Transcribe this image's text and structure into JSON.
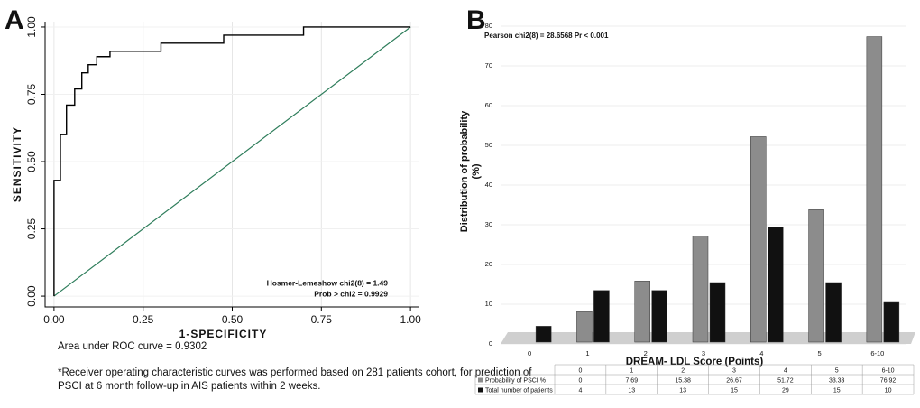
{
  "chart_data": [
    {
      "type": "line",
      "panel_label": "A",
      "xlabel": "1-SPECIFICITY",
      "ylabel": "SENSITIVITY",
      "x": [
        0,
        0,
        0.018,
        0.018,
        0.035,
        0.035,
        0.058,
        0.058,
        0.078,
        0.078,
        0.096,
        0.096,
        0.12,
        0.12,
        0.157,
        0.157,
        0.3,
        0.3,
        0.476,
        0.476,
        0.7,
        0.7,
        1
      ],
      "y": [
        0,
        0.43,
        0.43,
        0.6,
        0.6,
        0.71,
        0.71,
        0.77,
        0.77,
        0.83,
        0.83,
        0.86,
        0.86,
        0.89,
        0.89,
        0.91,
        0.91,
        0.94,
        0.94,
        0.97,
        0.97,
        1,
        1
      ],
      "color": "#000000",
      "reference_color": "#2e7d5b",
      "xlim": [
        -0.025,
        1.025
      ],
      "ylim": [
        -0.04,
        1.02
      ],
      "xticks": [
        {
          "value": 0,
          "label": "0.00"
        },
        {
          "value": 0.25,
          "label": "0.25"
        },
        {
          "value": 0.5,
          "label": "0.50"
        },
        {
          "value": 0.75,
          "label": "0.75"
        },
        {
          "value": 1,
          "label": "1.00"
        }
      ],
      "yticks": [
        {
          "value": 0,
          "label": "0.00"
        },
        {
          "value": 0.25,
          "label": "0.25"
        },
        {
          "value": 0.5,
          "label": "0.50"
        },
        {
          "value": 0.75,
          "label": "0.75"
        },
        {
          "value": 1,
          "label": "1.00"
        }
      ],
      "grid": true,
      "annotations": [
        "Hosmer-Lemeshow chi2(8) = 1.49",
        "Prob > chi2 = 0.9929"
      ],
      "note": "Area under ROC curve = 0.9302",
      "footnote": [
        "*Receiver operating characteristic curves was performed based on 281 patients cohort, for prediction of",
        "PSCI at 6 month follow-up in AIS patients within 2 weeks."
      ]
    },
    {
      "type": "bar",
      "panel_label": "B",
      "title": "Pearson chi2(8) = 28.6568   Pr < 0.001",
      "xlabel": "DREAM- LDL Score (Points)",
      "ylabel": [
        "Distribution  of probability",
        "(%)"
      ],
      "categories": [
        "0",
        "1",
        "2",
        "3",
        "4",
        "5",
        "6-10"
      ],
      "series": [
        {
          "name": "Probability of PSCI %",
          "color": "#8c8c8c",
          "values": [
            0,
            7.69,
            15.38,
            26.67,
            51.72,
            33.33,
            76.92
          ]
        },
        {
          "name": "Total number of patients",
          "color": "#111111",
          "values": [
            4,
            13,
            13,
            15,
            29,
            15,
            10
          ]
        }
      ],
      "ylim": [
        0,
        80
      ],
      "yticks": [
        0,
        10,
        20,
        30,
        40,
        50,
        60,
        70,
        80
      ],
      "grid": true
    }
  ]
}
